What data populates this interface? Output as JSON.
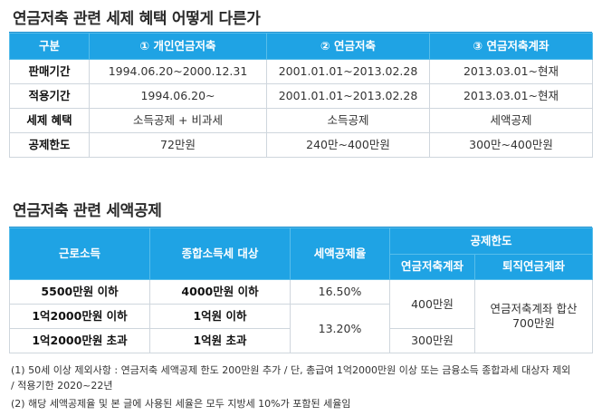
{
  "section1": {
    "title": "연금저축 관련 세제 혜택 어떻게 다른가",
    "headers": [
      "구분",
      "① 개인연금저축",
      "② 연금저축",
      "③ 연금저축계좌"
    ],
    "rows": [
      {
        "label": "판매기간",
        "cells": [
          "1994.06.20~2000.12.31",
          "2001.01.01~2013.02.28",
          "2013.03.01~현재"
        ]
      },
      {
        "label": "적용기간",
        "cells": [
          "1994.06.20~",
          "2001.01.01~2013.02.28",
          "2013.03.01~현재"
        ]
      },
      {
        "label": "세제 혜택",
        "cells": [
          "소득공제 + 비과세",
          "소득공제",
          "세액공제"
        ]
      },
      {
        "label": "공제한도",
        "cells": [
          "72만원",
          "240만~400만원",
          "300만~400만원"
        ]
      }
    ]
  },
  "section2": {
    "title": "연금저축 관련 세액공제",
    "headers": {
      "income": "근로소득",
      "tax_target": "종합소득세 대상",
      "rate": "세액공제율",
      "limit": "공제한도",
      "limit_account": "연금저축계좌",
      "limit_retire": "퇴직연금계좌"
    },
    "rows": [
      {
        "income": "5500만원 이하",
        "tax_target": "4000만원 이하"
      },
      {
        "income": "1억2000만원 이하",
        "tax_target": "1억원 이하"
      },
      {
        "income": "1억2000만원 초과",
        "tax_target": "1억원 초과"
      }
    ],
    "rates": [
      "16.50%",
      "13.20%"
    ],
    "limits_account": [
      "400만원",
      "300만원"
    ],
    "limit_retire": [
      "연금저축계좌 합산",
      "700만원"
    ]
  },
  "notes": [
    "(1) 50세 이상 제외사항 : 연금저축 세액공제 한도 200만원 추가 / 단, 총급여 1억2000만원 이상 또는 금융소득 종합과세 대상자 제외",
    "/ 적용기한 2020~22년",
    "(2) 해당 세액공제율 및 본 글에 사용된 세율은 모두 지방세 10%가 포함된 세율임"
  ]
}
